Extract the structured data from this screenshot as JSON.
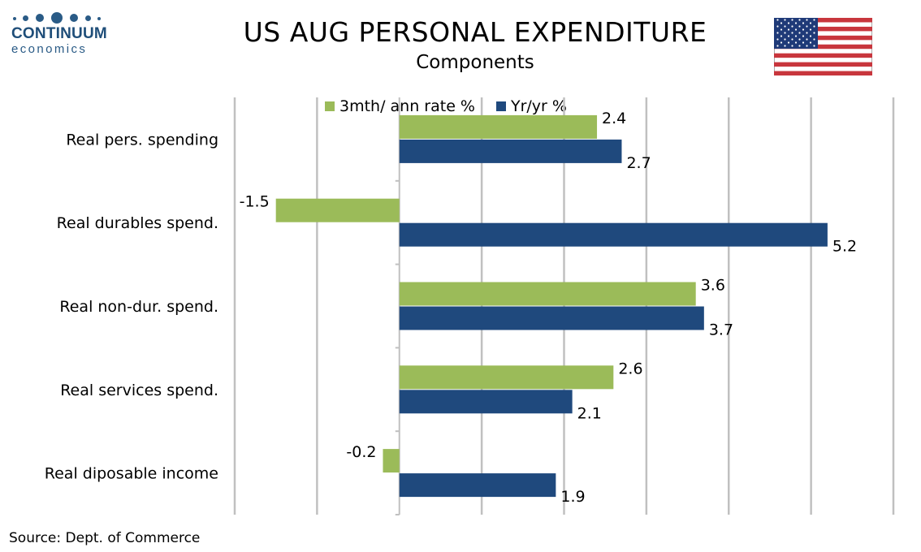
{
  "logo": {
    "name": "CONTINUUM",
    "sub": "economics"
  },
  "title": "US AUG PERSONAL EXPENDITURE",
  "subtitle": "Components",
  "source": "Source: Dept. of Commerce",
  "colors": {
    "series1": "#9bbb59",
    "series2": "#1f497d",
    "grid": "#c0c0c0",
    "flag_red": "#c8363d",
    "flag_blue": "#1f3a78"
  },
  "chart_data": {
    "type": "bar",
    "orientation": "horizontal",
    "title": "US AUG PERSONAL EXPENDITURE",
    "subtitle": "Components",
    "categories": [
      "Real pers. spending",
      "Real durables spend.",
      "Real non-dur. spend.",
      "Real services spend.",
      "Real diposable income"
    ],
    "series": [
      {
        "name": "3mth/ ann rate %",
        "values": [
          2.4,
          -1.5,
          3.6,
          2.6,
          -0.2
        ]
      },
      {
        "name": "Yr/yr %",
        "values": [
          2.7,
          5.2,
          3.7,
          2.1,
          1.9
        ]
      }
    ],
    "value_labels": [
      [
        "2.4",
        "-1.5",
        "3.6",
        "2.6",
        "-0.2"
      ],
      [
        "2.7",
        "5.2",
        "3.7",
        "2.1",
        "1.9"
      ]
    ],
    "xlim": [
      -2,
      6
    ],
    "grid": true,
    "legend": "top"
  }
}
